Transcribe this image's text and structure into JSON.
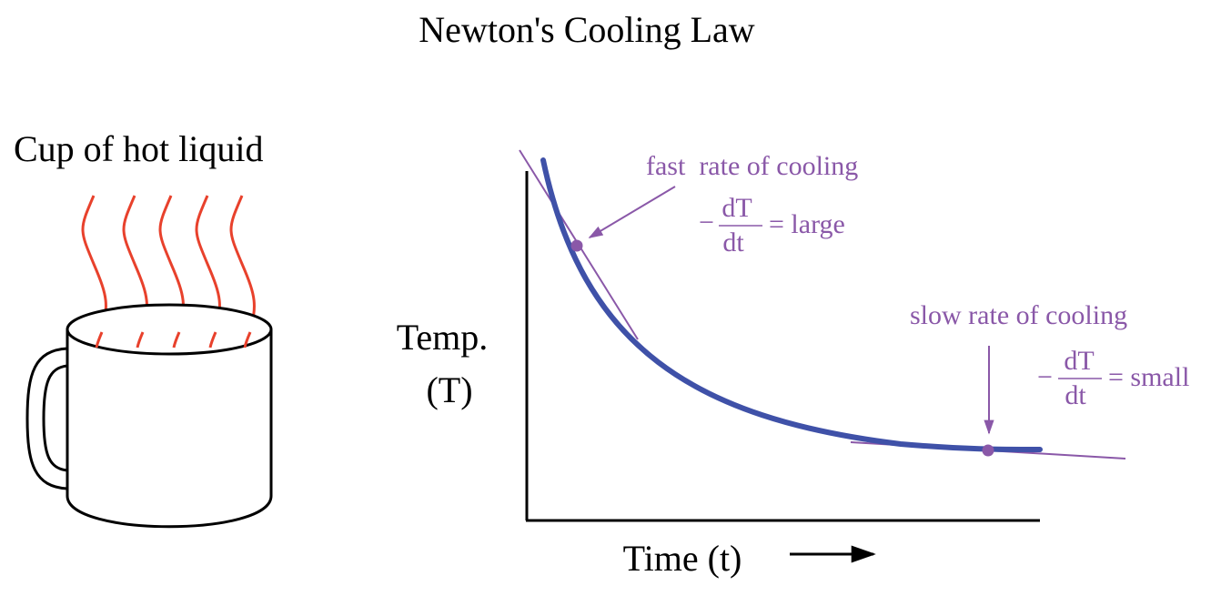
{
  "title": "Newton's Cooling Law",
  "cup": {
    "label": "Cup of hot liquid"
  },
  "graph": {
    "y_label_line1": "Temp.",
    "y_label_line2": "(T)",
    "x_label": "Time (t)",
    "fast": {
      "label": "fast  rate of cooling",
      "minus": "−",
      "numerator": "dT",
      "denominator": "dt",
      "result": "= large"
    },
    "slow": {
      "label": "slow rate of cooling",
      "minus": "−",
      "numerator": "dT",
      "denominator": "dt",
      "result": "= small"
    }
  },
  "colors": {
    "ink": "#000000",
    "steam": "#e8412c",
    "curve": "#3f51a8",
    "annotation": "#8a58a8"
  }
}
